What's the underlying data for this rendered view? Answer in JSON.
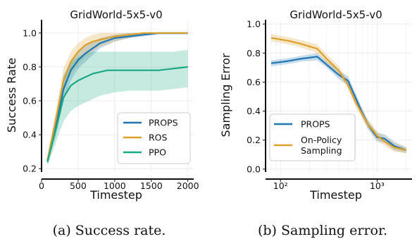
{
  "colors": {
    "PROPS": "#1f77b4",
    "ROS": "#dba02a",
    "PPO": "#1aa883",
    "On-Policy Sampling": "#dba02a"
  },
  "chart_data": [
    {
      "type": "line",
      "title": "GridWorld-5x5-v0",
      "caption": "(a) Success rate.",
      "xlabel": "Timestep",
      "ylabel": "Success Rate",
      "xscale": "linear",
      "xlim": [
        0,
        2080
      ],
      "ylim": [
        0.18,
        1.07
      ],
      "xticks": [
        0,
        500,
        1000,
        1500,
        2000
      ],
      "xtick_labels": [
        "0",
        "500",
        "1000",
        "1500",
        "2000"
      ],
      "yticks": [
        0.2,
        0.4,
        0.6,
        0.8,
        1.0
      ],
      "ytick_labels": [
        "0.2",
        "0.4",
        "0.6",
        "0.8",
        "1.0"
      ],
      "grid": true,
      "legend_position": "bottom-right",
      "series": [
        {
          "name": "PROPS",
          "x": [
            80,
            200,
            300,
            400,
            500,
            600,
            700,
            800,
            1000,
            1200,
            1400,
            1600,
            1800,
            2000
          ],
          "y": [
            0.24,
            0.46,
            0.67,
            0.78,
            0.84,
            0.88,
            0.91,
            0.94,
            0.97,
            0.98,
            0.99,
            1.0,
            1.0,
            1.0
          ],
          "lower": [
            0.22,
            0.4,
            0.6,
            0.72,
            0.79,
            0.83,
            0.87,
            0.91,
            0.95,
            0.97,
            0.98,
            0.99,
            0.99,
            0.99
          ],
          "upper": [
            0.26,
            0.52,
            0.74,
            0.84,
            0.89,
            0.93,
            0.95,
            0.97,
            0.99,
            1.0,
            1.0,
            1.0,
            1.0,
            1.0
          ]
        },
        {
          "name": "ROS",
          "x": [
            80,
            200,
            300,
            400,
            500,
            600,
            700,
            800,
            1000,
            1200,
            1400,
            1600,
            1800,
            2000
          ],
          "y": [
            0.25,
            0.5,
            0.72,
            0.83,
            0.89,
            0.93,
            0.95,
            0.96,
            0.98,
            0.99,
            1.0,
            1.0,
            1.0,
            1.0
          ],
          "lower": [
            0.23,
            0.44,
            0.65,
            0.76,
            0.82,
            0.86,
            0.89,
            0.92,
            0.95,
            0.97,
            0.99,
            1.0,
            1.0,
            1.0
          ],
          "upper": [
            0.27,
            0.56,
            0.79,
            0.89,
            0.94,
            0.97,
            0.99,
            1.0,
            1.0,
            1.0,
            1.0,
            1.0,
            1.0,
            1.0
          ]
        },
        {
          "name": "PPO",
          "x": [
            80,
            200,
            300,
            400,
            500,
            600,
            700,
            800,
            900,
            1000,
            1200,
            1400,
            1600,
            1800,
            2000
          ],
          "y": [
            0.24,
            0.44,
            0.62,
            0.69,
            0.72,
            0.74,
            0.76,
            0.77,
            0.78,
            0.78,
            0.78,
            0.78,
            0.78,
            0.79,
            0.8
          ],
          "lower": [
            0.22,
            0.36,
            0.48,
            0.54,
            0.57,
            0.59,
            0.61,
            0.63,
            0.64,
            0.65,
            0.66,
            0.66,
            0.66,
            0.67,
            0.68
          ],
          "upper": [
            0.26,
            0.52,
            0.75,
            0.83,
            0.86,
            0.88,
            0.89,
            0.89,
            0.89,
            0.89,
            0.89,
            0.89,
            0.89,
            0.89,
            0.9
          ]
        }
      ]
    },
    {
      "type": "line",
      "title": "GridWorld-5x5-v0",
      "caption": "(b) Sampling error.",
      "xlabel": "Timestep",
      "ylabel": "Sampling Error",
      "xscale": "log",
      "xlim": [
        70,
        2300
      ],
      "ylim": [
        -0.02,
        1.02
      ],
      "xticks": [
        100,
        1000
      ],
      "xtick_labels": [
        "10²",
        "10³"
      ],
      "yticks": [
        0.0,
        0.2,
        0.4,
        0.6,
        0.8,
        1.0
      ],
      "ytick_labels": [
        "0.0",
        "0.2",
        "0.4",
        "0.6",
        "0.8",
        "1.0"
      ],
      "grid": true,
      "legend_position": "bottom-left",
      "series": [
        {
          "name": "PROPS",
          "x": [
            80,
            120,
            160,
            240,
            300,
            400,
            500,
            600,
            700,
            800,
            900,
            1000,
            1200,
            1500,
            2000
          ],
          "y": [
            0.73,
            0.745,
            0.76,
            0.775,
            0.72,
            0.65,
            0.61,
            0.49,
            0.39,
            0.31,
            0.26,
            0.22,
            0.21,
            0.16,
            0.13
          ],
          "lower": [
            0.71,
            0.725,
            0.74,
            0.75,
            0.7,
            0.62,
            0.58,
            0.46,
            0.36,
            0.28,
            0.23,
            0.19,
            0.18,
            0.13,
            0.11
          ],
          "upper": [
            0.75,
            0.765,
            0.78,
            0.8,
            0.745,
            0.68,
            0.64,
            0.52,
            0.42,
            0.34,
            0.29,
            0.25,
            0.24,
            0.19,
            0.15
          ]
        },
        {
          "name": "On-Policy Sampling",
          "x": [
            80,
            120,
            160,
            240,
            300,
            400,
            500,
            600,
            700,
            800,
            900,
            1000,
            1200,
            1500,
            2000
          ],
          "y": [
            0.905,
            0.885,
            0.865,
            0.83,
            0.76,
            0.68,
            0.58,
            0.46,
            0.38,
            0.31,
            0.27,
            0.23,
            0.19,
            0.15,
            0.13
          ],
          "lower": [
            0.88,
            0.86,
            0.84,
            0.8,
            0.73,
            0.65,
            0.55,
            0.43,
            0.35,
            0.28,
            0.24,
            0.2,
            0.16,
            0.12,
            0.11
          ],
          "upper": [
            0.93,
            0.91,
            0.89,
            0.86,
            0.79,
            0.71,
            0.61,
            0.49,
            0.41,
            0.34,
            0.3,
            0.26,
            0.22,
            0.18,
            0.15
          ]
        }
      ]
    }
  ]
}
